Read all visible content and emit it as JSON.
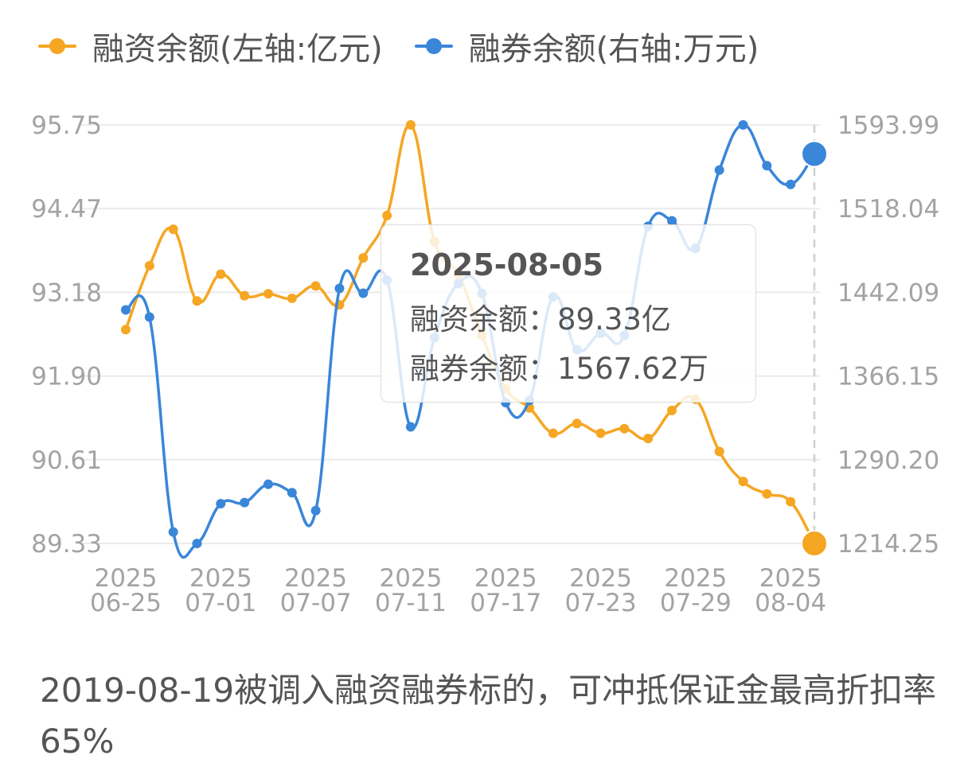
{
  "chart_data": {
    "type": "line",
    "legend_position": "top-left",
    "grid": true,
    "x": [
      "2025-06-25",
      "2025-06-26",
      "2025-06-27",
      "2025-06-30",
      "2025-07-01",
      "2025-07-02",
      "2025-07-03",
      "2025-07-04",
      "2025-07-07",
      "2025-07-08",
      "2025-07-09",
      "2025-07-10",
      "2025-07-11",
      "2025-07-14",
      "2025-07-15",
      "2025-07-16",
      "2025-07-17",
      "2025-07-18",
      "2025-07-21",
      "2025-07-22",
      "2025-07-23",
      "2025-07-24",
      "2025-07-25",
      "2025-07-28",
      "2025-07-29",
      "2025-07-30",
      "2025-07-31",
      "2025-08-01",
      "2025-08-04",
      "2025-08-05"
    ],
    "x_tick_labels": [
      {
        "year": "2025",
        "md": "06-25",
        "index": 0
      },
      {
        "year": "2025",
        "md": "07-01",
        "index": 4
      },
      {
        "year": "2025",
        "md": "07-07",
        "index": 8
      },
      {
        "year": "2025",
        "md": "07-11",
        "index": 12
      },
      {
        "year": "2025",
        "md": "07-17",
        "index": 16
      },
      {
        "year": "2025",
        "md": "07-23",
        "index": 20
      },
      {
        "year": "2025",
        "md": "07-29",
        "index": 24
      },
      {
        "year": "2025",
        "md": "08-04",
        "index": 28
      }
    ],
    "y_left_ticks": [
      "95.75",
      "94.47",
      "93.18",
      "91.90",
      "90.61",
      "89.33"
    ],
    "y_left_range": [
      89.33,
      95.75
    ],
    "y_right_ticks": [
      "1593.99",
      "1518.04",
      "1442.09",
      "1366.15",
      "1290.20",
      "1214.25"
    ],
    "y_right_range": [
      1214.25,
      1593.99
    ],
    "series": [
      {
        "name": "融资余额(左轴:亿元)",
        "axis": "left",
        "color": "#f5a623",
        "values": [
          92.61,
          93.59,
          94.15,
          93.05,
          93.46,
          93.13,
          93.16,
          93.09,
          93.28,
          92.99,
          93.71,
          94.36,
          95.75,
          93.96,
          93.46,
          92.52,
          91.7,
          91.41,
          91.02,
          91.17,
          91.02,
          91.09,
          90.94,
          91.37,
          91.54,
          90.74,
          90.28,
          90.09,
          89.97,
          89.33
        ]
      },
      {
        "name": "融券余额(右轴:万元)",
        "axis": "right",
        "color": "#3a86d9",
        "values": [
          1426.1,
          1419.6,
          1224.6,
          1214.2,
          1250.3,
          1251.3,
          1267.9,
          1260.3,
          1244.0,
          1445.6,
          1441.3,
          1453.1,
          1320.0,
          1401.0,
          1450.0,
          1441.0,
          1342.0,
          1344.0,
          1438.0,
          1390.0,
          1405.0,
          1403.0,
          1502.0,
          1507.0,
          1482.0,
          1553.0,
          1593.99,
          1557.0,
          1540.0,
          1567.62
        ]
      }
    ],
    "tooltip": {
      "date": "2025-08-05",
      "label_margin": "融资余额：",
      "value_margin": "89.33亿",
      "label_short": "融券余额：",
      "value_short": "1567.62万"
    }
  },
  "note": "2019-08-19被调入融资融券标的，可冲抵保证金最高折扣率65%"
}
